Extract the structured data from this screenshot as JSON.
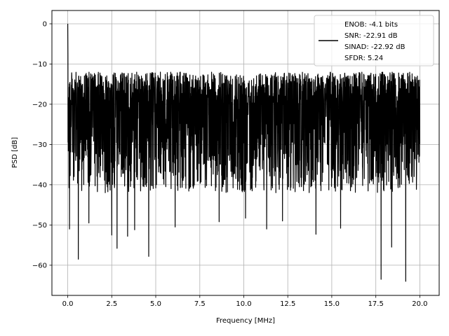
{
  "chart_data": {
    "type": "line",
    "title": "",
    "xlabel": "Frequency [MHz]",
    "ylabel": "PSD [dB]",
    "xlim": [
      -0.9,
      21.1
    ],
    "ylim": [
      -67.5,
      3.3
    ],
    "xticks": [
      0.0,
      2.5,
      5.0,
      7.5,
      10.0,
      12.5,
      15.0,
      17.5,
      20.0
    ],
    "xtick_labels": [
      "0.0",
      "2.5",
      "5.0",
      "7.5",
      "10.0",
      "12.5",
      "15.0",
      "17.5",
      "20.0"
    ],
    "yticks": [
      0,
      -10,
      -20,
      -30,
      -40,
      -50,
      -60
    ],
    "ytick_labels": [
      "0",
      "−10",
      "−20",
      "−30",
      "−40",
      "−50",
      "−60"
    ],
    "grid": true,
    "legend_position": "top-right",
    "series": [
      {
        "name": "ENOB: -4.1 bits\nSNR: -22.91 dB\nSINAD: -22.92 dB\nSFDR: 5.24",
        "legend_lines": [
          "ENOB: -4.1 bits",
          "SNR: -22.91 dB",
          "SINAD: -22.92 dB",
          "SFDR: 5.24"
        ],
        "color": "#000000",
        "description_points": {
          "x_range": [
            0.0,
            20.0
          ],
          "peak": {
            "x": 0.0,
            "y": 0.0
          },
          "typical_upper_envelope": -12,
          "typical_lower_envelope": -38,
          "notable_minima": [
            {
              "x": 0.1,
              "y": -51
            },
            {
              "x": 0.6,
              "y": -58.5
            },
            {
              "x": 1.2,
              "y": -49.5
            },
            {
              "x": 2.5,
              "y": -52.5
            },
            {
              "x": 2.8,
              "y": -55.8
            },
            {
              "x": 3.4,
              "y": -52.8
            },
            {
              "x": 3.8,
              "y": -51.2
            },
            {
              "x": 4.6,
              "y": -57.8
            },
            {
              "x": 6.1,
              "y": -50.5
            },
            {
              "x": 8.6,
              "y": -49.2
            },
            {
              "x": 10.1,
              "y": -48.3
            },
            {
              "x": 11.3,
              "y": -51.0
            },
            {
              "x": 12.2,
              "y": -49.0
            },
            {
              "x": 14.1,
              "y": -52.3
            },
            {
              "x": 15.5,
              "y": -50.8
            },
            {
              "x": 17.8,
              "y": -63.5
            },
            {
              "x": 18.4,
              "y": -55.5
            },
            {
              "x": 19.2,
              "y": -64.0
            }
          ]
        }
      }
    ]
  }
}
